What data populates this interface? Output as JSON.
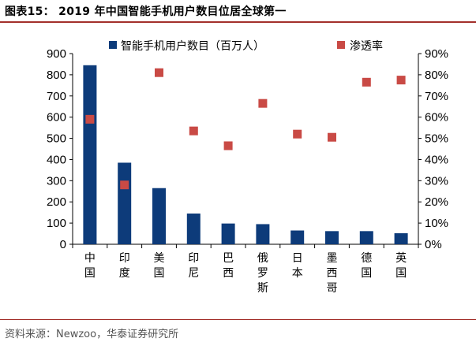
{
  "figure_title": "图表15：  2019 年中国智能手机用户数目位居全球第一",
  "source": "资料来源：Newzoo，华泰证券研究所",
  "colors": {
    "bar": "#0d3b7a",
    "marker": "#c94a45",
    "rule": "#a3302b"
  },
  "chart_data": {
    "type": "bar",
    "title": "2019 年中国智能手机用户数目位居全球第一",
    "categories": [
      "中国",
      "印度",
      "美国",
      "印尼",
      "巴西",
      "俄罗斯",
      "日本",
      "墨西哥",
      "德国",
      "英国"
    ],
    "series": [
      {
        "name": "智能手机用户数目（百万人）",
        "kind": "bar",
        "axis": "left",
        "values": [
          845,
          385,
          265,
          145,
          98,
          95,
          65,
          62,
          62,
          52
        ]
      },
      {
        "name": "渗透率",
        "kind": "scatter",
        "axis": "right",
        "values": [
          0.59,
          0.28,
          0.81,
          0.535,
          0.465,
          0.665,
          0.52,
          0.505,
          0.765,
          0.775
        ]
      }
    ],
    "y_left": {
      "ylim": [
        0,
        900
      ],
      "ticks": [
        "0",
        "100",
        "200",
        "300",
        "400",
        "500",
        "600",
        "700",
        "800",
        "900"
      ]
    },
    "y_right": {
      "ylim": [
        0,
        0.9
      ],
      "ticks": [
        "0%",
        "10%",
        "20%",
        "30%",
        "40%",
        "50%",
        "60%",
        "70%",
        "80%",
        "90%"
      ]
    },
    "legend": [
      "智能手机用户数目（百万人）",
      "渗透率"
    ],
    "legend_position": "top"
  }
}
